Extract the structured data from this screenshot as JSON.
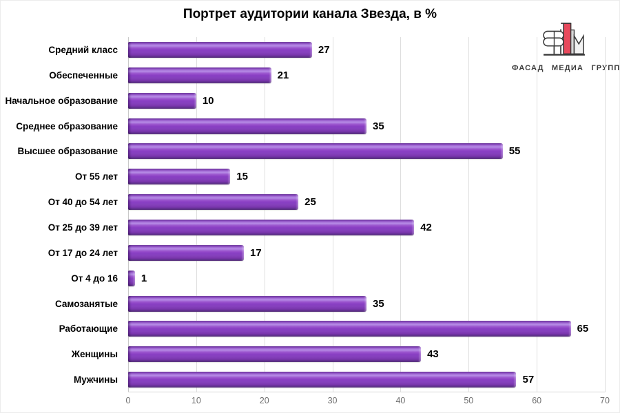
{
  "title": "Портрет аудитории канала Звезда, в %",
  "logo": {
    "name": "fasad-media-grupp",
    "text": "ФАСАД МЕДИА ГРУПП",
    "colors": {
      "red": "#e8495c",
      "outline": "#3b3b3b",
      "gray": "#d6d6d6"
    }
  },
  "chart_data": {
    "type": "bar",
    "orientation": "horizontal",
    "title": "Портрет аудитории канала Звезда, в %",
    "categories": [
      "Средний класс",
      "Обеспеченные",
      "Начальное образование",
      "Среднее образование",
      "Высшее образование",
      "От 55 лет",
      "От 40 до 54 лет",
      "От 25 до 39 лет",
      "От 17 до 24 лет",
      "От 4 до 16",
      "Самозанятые",
      "Работающие",
      "Женщины",
      "Мужчины"
    ],
    "values": [
      27,
      21,
      10,
      35,
      55,
      15,
      25,
      42,
      17,
      1,
      35,
      65,
      43,
      57
    ],
    "xlabel": "",
    "ylabel": "",
    "xlim": [
      0,
      70
    ],
    "x_ticks": [
      0,
      10,
      20,
      30,
      40,
      50,
      60,
      70
    ],
    "grid": true,
    "legend": false,
    "data_labels": true,
    "bar_color": "#8a3fc4",
    "bar_highlight": "#b68ce6",
    "bar_shadow": "#4b2073",
    "tick_label_color": "#6f6f6f",
    "gridline_color": "#dedede"
  }
}
